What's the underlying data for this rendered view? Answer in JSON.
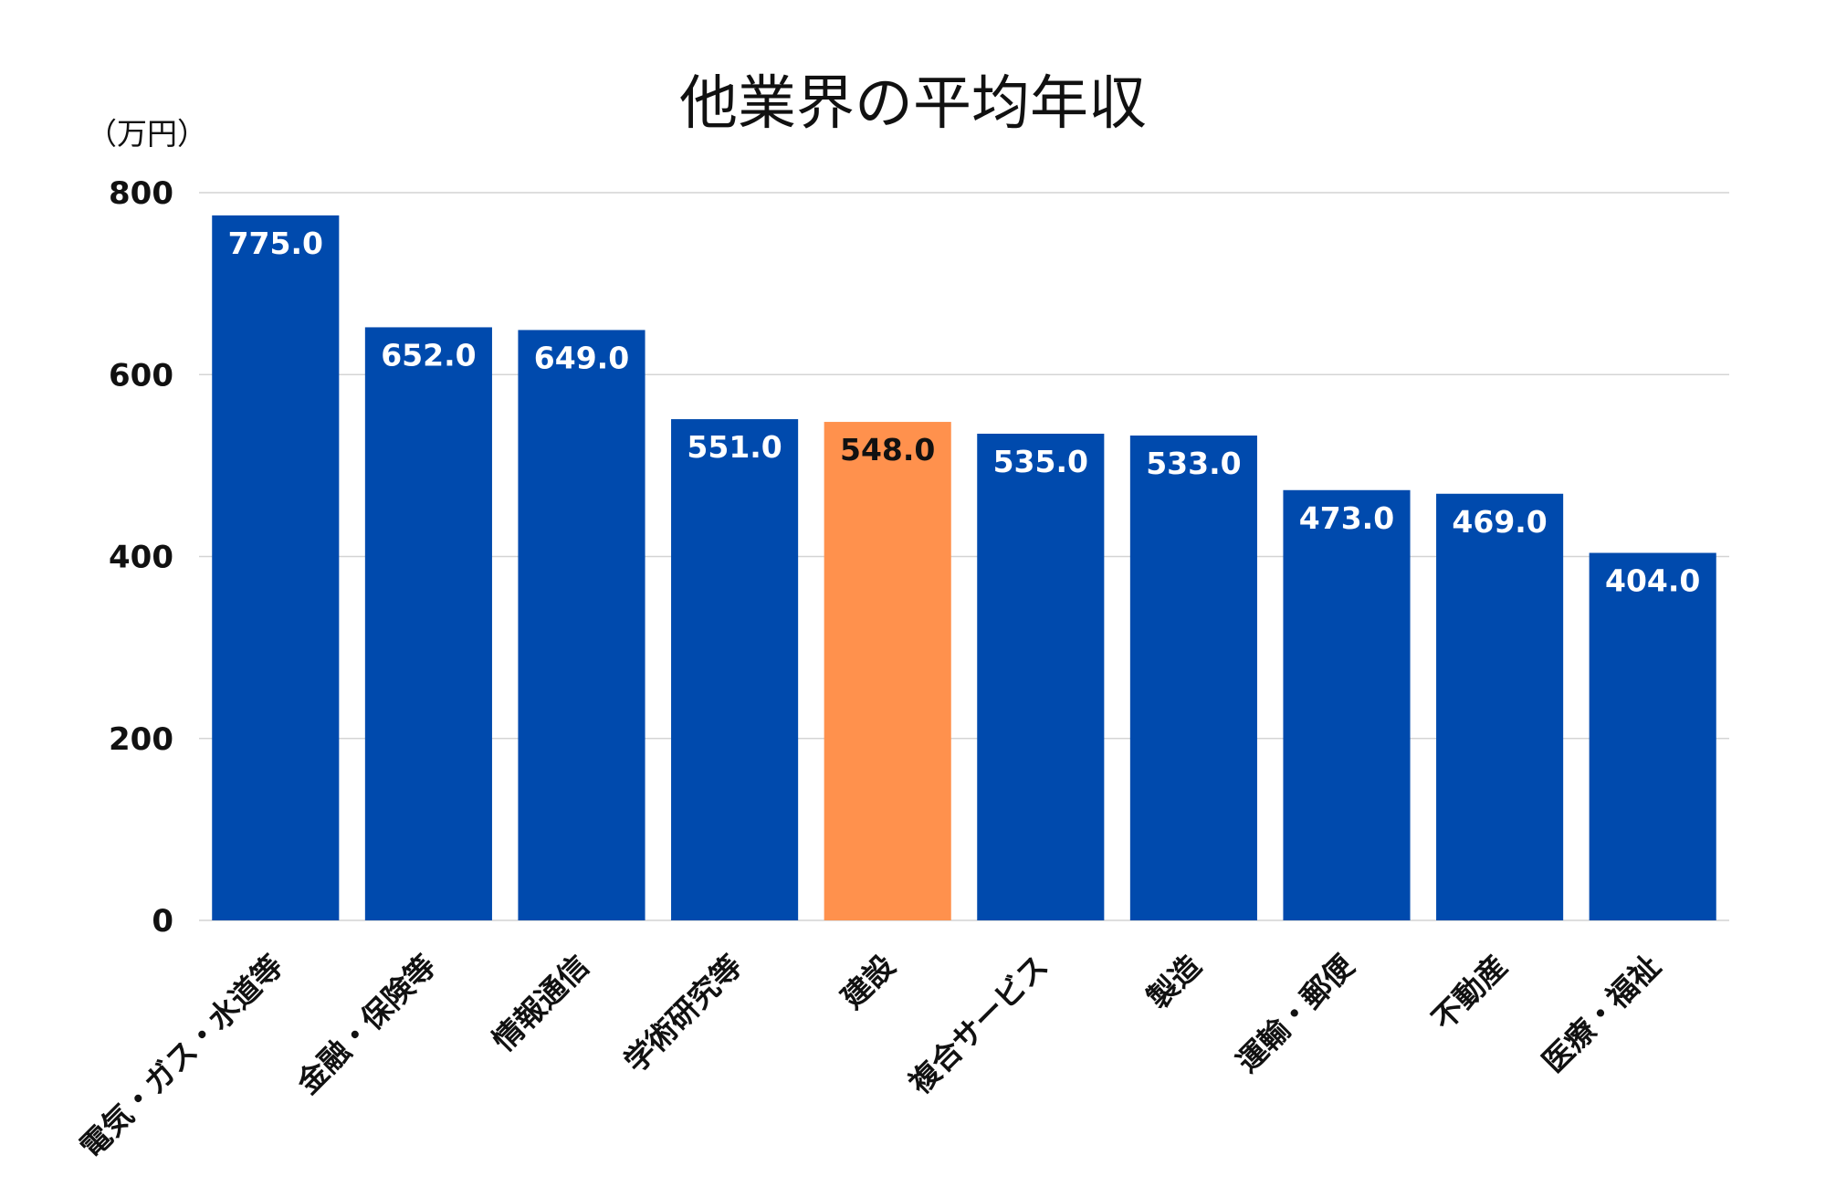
{
  "chart_data": {
    "type": "bar",
    "title": "他業界の平均年収",
    "unit_label": "（万円）",
    "xlabel": "",
    "ylabel": "",
    "ylim": [
      0,
      800
    ],
    "yticks": [
      0,
      200,
      400,
      600,
      800
    ],
    "ytick_labels": [
      "0",
      "200",
      "400",
      "600",
      "800"
    ],
    "grid": true,
    "categories": [
      "電気・ガス・水道等",
      "金融・保険等",
      "情報通信",
      "学術研究等",
      "建設",
      "複合サービス",
      "製造",
      "運輸・郵便",
      "不動産",
      "医療・福祉"
    ],
    "values": [
      775.0,
      652.0,
      649.0,
      551.0,
      548.0,
      535.0,
      533.0,
      473.0,
      469.0,
      404.0
    ],
    "value_labels": [
      "775.0",
      "652.0",
      "649.0",
      "551.0",
      "548.0",
      "535.0",
      "533.0",
      "473.0",
      "469.0",
      "404.0"
    ],
    "colors": {
      "default_bar": "#004AAD",
      "highlight_bar": "#FF914D",
      "default_label": "#ffffff",
      "highlight_label": "#111111"
    },
    "highlight_category": "建設"
  }
}
